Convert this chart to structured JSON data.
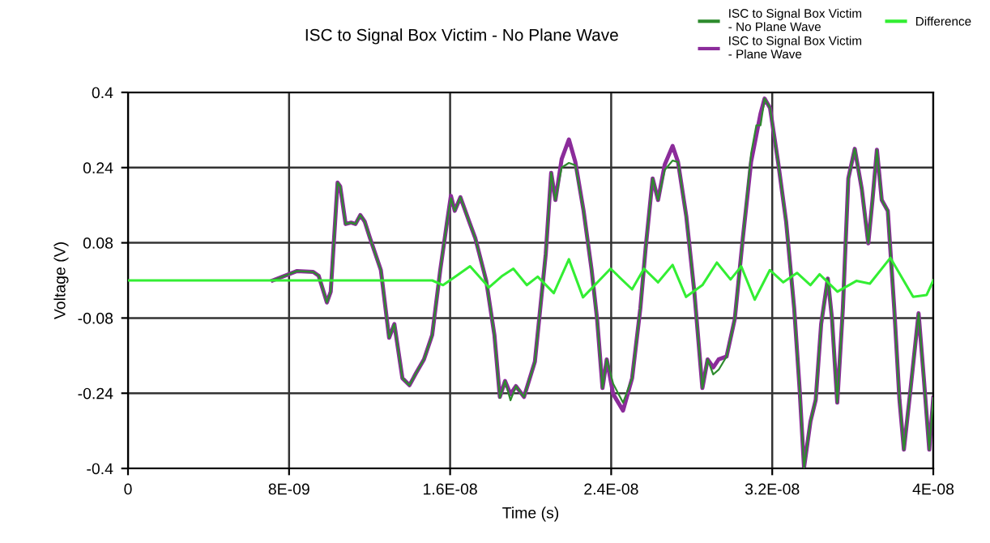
{
  "chart_data": {
    "type": "line",
    "title": "ISC to Signal Box Victim - No Plane Wave",
    "xlabel": "Time (s)",
    "ylabel": "Voltage (V)",
    "xlim": [
      0,
      4e-08
    ],
    "ylim": [
      -0.4,
      0.4
    ],
    "xticks": [
      0,
      {
        "value": 8e-09,
        "label": "8E-09"
      },
      {
        "value": 1.6e-08,
        "label": "1.6E-08"
      },
      {
        "value": 2.4e-08,
        "label": "2.4E-08"
      },
      {
        "value": 3.2e-08,
        "label": "3.2E-08"
      },
      {
        "value": 4e-08,
        "label": "4E-08"
      }
    ],
    "yticks": [
      -0.4,
      -0.24,
      -0.08,
      0.08,
      0.24,
      0.4
    ],
    "grid": true,
    "legend": "top right",
    "marker": "none",
    "line_style": "solid",
    "x": [
      7.19e-09,
      8.4e-09,
      9.2e-09,
      9.47e-09,
      9.88e-09,
      1.007e-08,
      1.041e-08,
      1.054e-08,
      1.081e-08,
      1.108e-08,
      1.13e-08,
      1.154e-08,
      1.176e-08,
      1.202e-08,
      1.229e-08,
      1.256e-08,
      1.297e-08,
      1.323e-08,
      1.363e-08,
      1.398e-08,
      1.431e-08,
      1.47e-08,
      1.511e-08,
      1.551e-08,
      1.585e-08,
      1.604e-08,
      1.623e-08,
      1.651e-08,
      1.699e-08,
      1.725e-08,
      1.779e-08,
      1.82e-08,
      1.847e-08,
      1.873e-08,
      1.9e-08,
      1.927e-08,
      1.967e-08,
      2.021e-08,
      2.075e-08,
      2.102e-08,
      2.123e-08,
      2.154e-08,
      2.19e-08,
      2.222e-08,
      2.263e-08,
      2.303e-08,
      2.33e-08,
      2.357e-08,
      2.378e-08,
      2.41e-08,
      2.459e-08,
      2.504e-08,
      2.545e-08,
      2.571e-08,
      2.606e-08,
      2.633e-08,
      2.666e-08,
      2.705e-08,
      2.732e-08,
      2.773e-08,
      2.813e-08,
      2.853e-08,
      2.879e-08,
      2.907e-08,
      2.934e-08,
      2.973e-08,
      3.014e-08,
      3.054e-08,
      3.095e-08,
      3.121e-08,
      3.142e-08,
      3.162e-08,
      3.189e-08,
      3.229e-08,
      3.269e-08,
      3.309e-08,
      3.336e-08,
      3.358e-08,
      3.39e-08,
      3.416e-08,
      3.443e-08,
      3.476e-08,
      3.497e-08,
      3.523e-08,
      3.551e-08,
      3.578e-08,
      3.61e-08,
      3.645e-08,
      3.677e-08,
      3.698e-08,
      3.72e-08,
      3.744e-08,
      3.774e-08,
      3.806e-08,
      3.832e-08,
      3.854e-08,
      3.887e-08,
      3.927e-08,
      3.953e-08,
      3.98e-08,
      4e-08
    ],
    "series": [
      {
        "name": "ISC to Signal Box Victim - No Plane Wave",
        "color": "#2e8b2e",
        "values": [
          0.0,
          0.02,
          0.018,
          0.01,
          -0.047,
          -0.024,
          0.208,
          0.2,
          0.12,
          0.123,
          0.12,
          0.139,
          0.125,
          0.09,
          0.056,
          0.022,
          -0.122,
          -0.093,
          -0.208,
          -0.223,
          -0.197,
          -0.168,
          -0.116,
          0.022,
          0.125,
          0.175,
          0.148,
          0.177,
          0.12,
          0.09,
          0.0,
          -0.116,
          -0.25,
          -0.214,
          -0.255,
          -0.225,
          -0.248,
          -0.173,
          0.056,
          0.229,
          0.171,
          0.24,
          0.25,
          0.245,
          0.148,
          0.022,
          -0.082,
          -0.229,
          -0.168,
          -0.22,
          -0.26,
          -0.208,
          -0.059,
          0.068,
          0.217,
          0.171,
          0.235,
          0.255,
          0.252,
          0.137,
          -0.024,
          -0.229,
          -0.168,
          -0.2,
          -0.19,
          -0.162,
          -0.082,
          0.09,
          0.27,
          0.33,
          0.33,
          0.387,
          0.367,
          0.252,
          0.125,
          -0.059,
          -0.231,
          -0.398,
          -0.3,
          -0.254,
          -0.093,
          0.004,
          -0.082,
          -0.26,
          -0.059,
          0.217,
          0.28,
          0.194,
          0.079,
          0.171,
          0.278,
          0.171,
          0.148,
          -0.059,
          -0.254,
          -0.36,
          -0.231,
          -0.07,
          -0.208,
          -0.36,
          -0.25
        ]
      },
      {
        "name": "ISC to Signal Box Victim - Plane Wave",
        "color": "#8b2c9a",
        "values": [
          0.0,
          0.02,
          0.018,
          0.01,
          -0.047,
          -0.024,
          0.208,
          0.2,
          0.12,
          0.123,
          0.12,
          0.139,
          0.125,
          0.09,
          0.056,
          0.022,
          -0.122,
          -0.093,
          -0.208,
          -0.223,
          -0.197,
          -0.168,
          -0.116,
          0.022,
          0.125,
          0.18,
          0.148,
          0.177,
          0.12,
          0.09,
          0.0,
          -0.116,
          -0.248,
          -0.214,
          -0.242,
          -0.225,
          -0.248,
          -0.173,
          0.056,
          0.229,
          0.171,
          0.258,
          0.3,
          0.252,
          0.148,
          0.022,
          -0.082,
          -0.229,
          -0.168,
          -0.242,
          -0.277,
          -0.208,
          -0.059,
          0.068,
          0.217,
          0.171,
          0.246,
          0.286,
          0.252,
          0.137,
          -0.024,
          -0.229,
          -0.168,
          -0.185,
          -0.168,
          -0.162,
          -0.082,
          0.09,
          0.252,
          0.309,
          0.355,
          0.387,
          0.367,
          0.252,
          0.125,
          -0.059,
          -0.231,
          -0.398,
          -0.3,
          -0.254,
          -0.093,
          0.004,
          -0.082,
          -0.26,
          -0.059,
          0.217,
          0.28,
          0.194,
          0.079,
          0.171,
          0.278,
          0.171,
          0.148,
          -0.059,
          -0.254,
          -0.36,
          -0.231,
          -0.07,
          -0.208,
          -0.36,
          -0.25
        ]
      },
      {
        "name": "Difference",
        "color": "#33ee33",
        "x": [
          0,
          1.511e-08,
          1.565e-08,
          1.632e-08,
          1.699e-08,
          1.793e-08,
          1.86e-08,
          1.914e-08,
          1.981e-08,
          2.035e-08,
          2.115e-08,
          2.19e-08,
          2.26e-08,
          2.397e-08,
          2.504e-08,
          2.563e-08,
          2.633e-08,
          2.705e-08,
          2.772e-08,
          2.853e-08,
          2.925e-08,
          2.993e-08,
          3.046e-08,
          3.113e-08,
          3.188e-08,
          3.255e-08,
          3.323e-08,
          3.39e-08,
          3.435e-08,
          3.524e-08,
          3.618e-08,
          3.685e-08,
          3.787e-08,
          3.9e-08,
          3.967e-08,
          4e-08
        ],
        "values": [
          0.0,
          0.0,
          -0.01,
          0.01,
          0.03,
          -0.015,
          0.01,
          0.025,
          -0.01,
          0.008,
          -0.027,
          0.045,
          -0.036,
          0.025,
          -0.019,
          0.025,
          -0.004,
          0.033,
          -0.035,
          -0.01,
          0.038,
          0.002,
          0.03,
          -0.041,
          0.022,
          -0.004,
          0.016,
          -0.01,
          0.013,
          -0.024,
          -0.001,
          -0.007,
          0.048,
          -0.035,
          -0.031,
          0.0
        ]
      }
    ]
  }
}
